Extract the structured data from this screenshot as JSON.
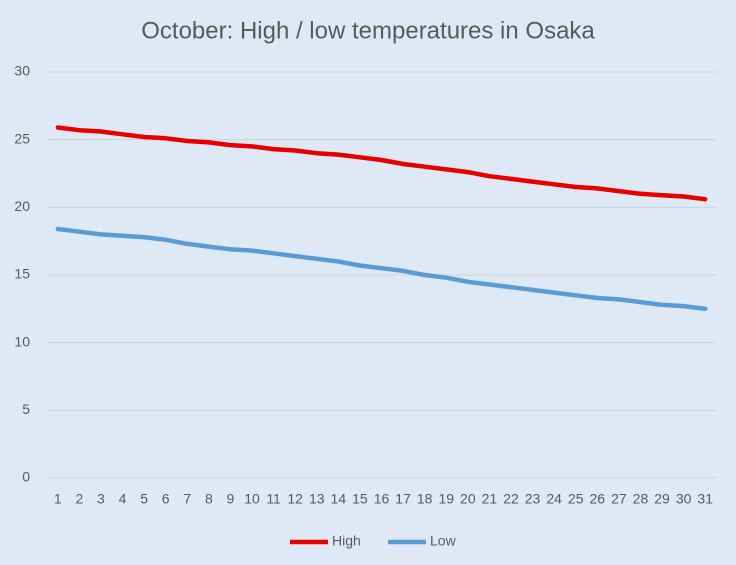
{
  "chart_data": {
    "type": "line",
    "title": "October: High / low temperatures in Osaka",
    "categories": [
      "1",
      "2",
      "3",
      "4",
      "5",
      "6",
      "7",
      "8",
      "9",
      "10",
      "11",
      "12",
      "13",
      "14",
      "15",
      "16",
      "17",
      "18",
      "19",
      "20",
      "21",
      "22",
      "23",
      "24",
      "25",
      "26",
      "27",
      "28",
      "29",
      "30",
      "31"
    ],
    "series": [
      {
        "name": "High",
        "color": "#e60000",
        "values": [
          25.9,
          25.7,
          25.6,
          25.4,
          25.2,
          25.1,
          24.9,
          24.8,
          24.6,
          24.5,
          24.3,
          24.2,
          24.0,
          23.9,
          23.7,
          23.5,
          23.2,
          23.0,
          22.8,
          22.6,
          22.3,
          22.1,
          21.9,
          21.7,
          21.5,
          21.4,
          21.2,
          21.0,
          20.9,
          20.8,
          20.6
        ]
      },
      {
        "name": "Low",
        "color": "#5b9bd5",
        "values": [
          18.4,
          18.2,
          18.0,
          17.9,
          17.8,
          17.6,
          17.3,
          17.1,
          16.9,
          16.8,
          16.6,
          16.4,
          16.2,
          16.0,
          15.7,
          15.5,
          15.3,
          15.0,
          14.8,
          14.5,
          14.3,
          14.1,
          13.9,
          13.7,
          13.5,
          13.3,
          13.2,
          13.0,
          12.8,
          12.7,
          12.5
        ]
      }
    ],
    "ylim": [
      0,
      30
    ],
    "yticks": [
      0,
      5,
      10,
      15,
      20,
      25,
      30
    ],
    "grid": true,
    "legend": "bottom"
  }
}
